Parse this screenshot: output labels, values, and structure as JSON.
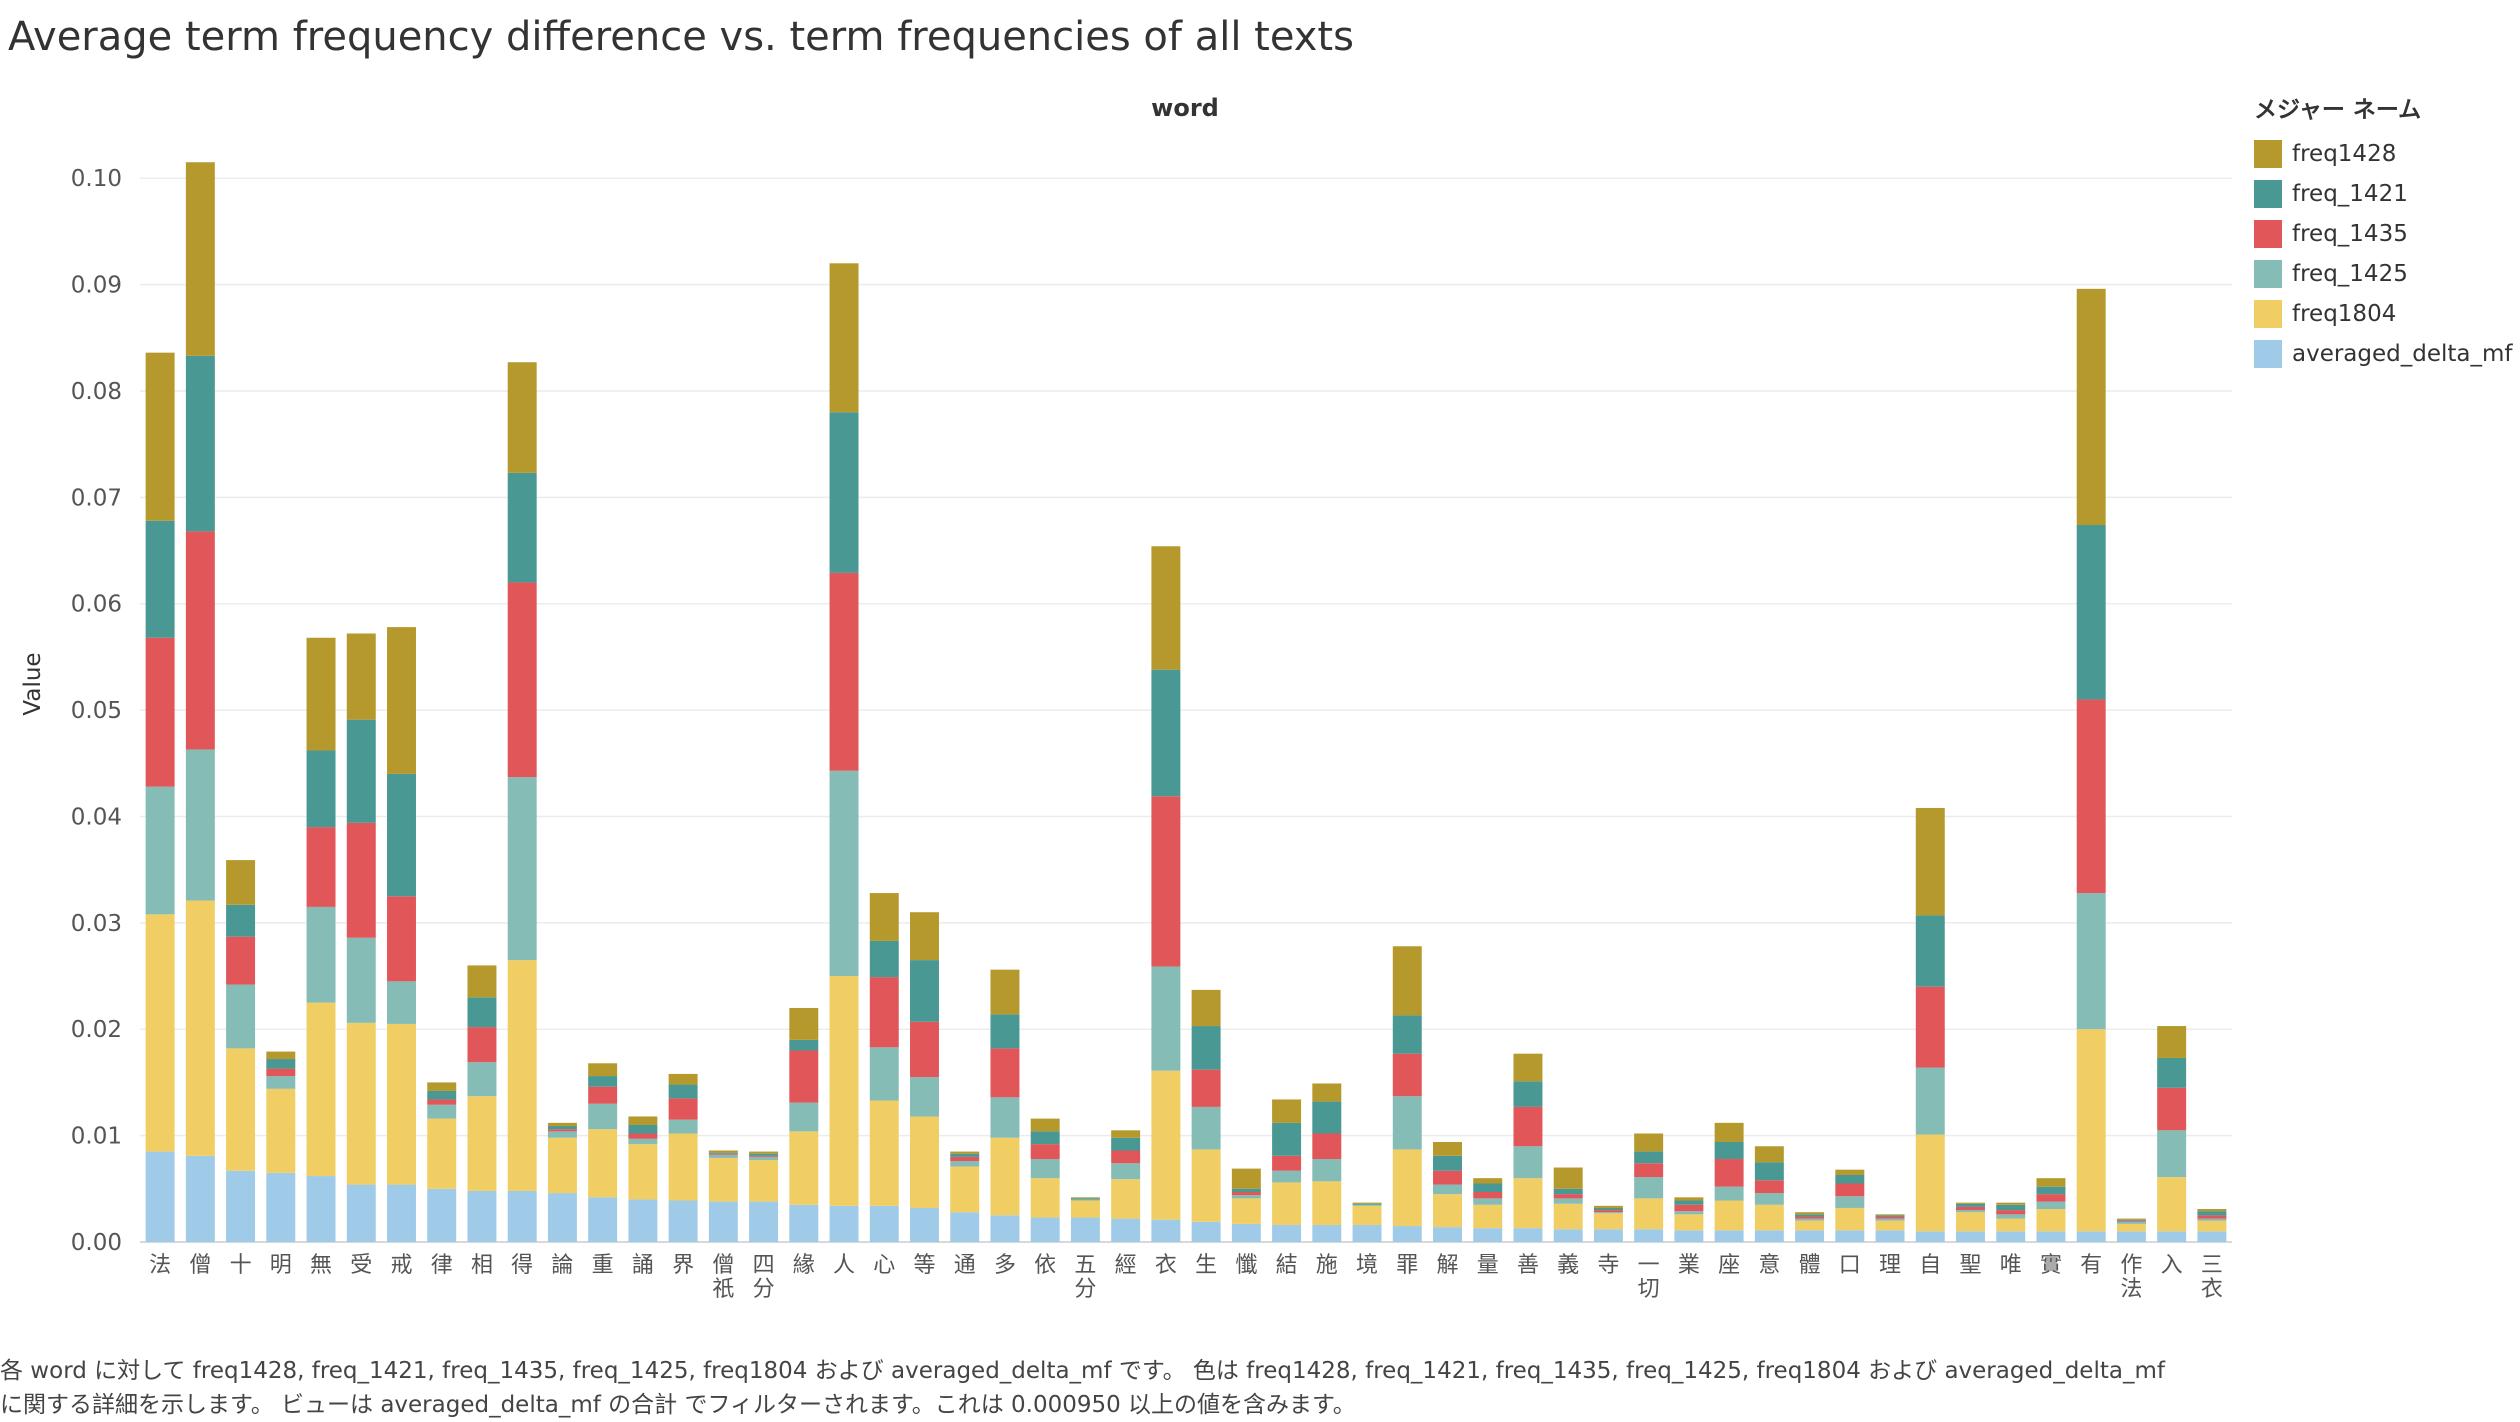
{
  "title": "Average term frequency difference vs. term frequencies of all texts",
  "legend_title": "メジャー ネーム",
  "caption_line1": "各 word に対して freq1428, freq_1421, freq_1435, freq_1425, freq1804 および averaged_delta_mf です。 色は freq1428, freq_1421, freq_1435, freq_1425, freq1804 および averaged_delta_mf",
  "caption_line2": "に関する詳細を示します。 ビューは averaged_delta_mf の合計 でフィルターされます。これは 0.000950 以上の値を含みます。",
  "chart_data": {
    "type": "bar",
    "stacked": true,
    "xlabel": "word",
    "ylabel": "Value",
    "ylim": [
      0,
      0.105
    ],
    "yticks": [
      "0.00",
      "0.01",
      "0.02",
      "0.03",
      "0.04",
      "0.05",
      "0.06",
      "0.07",
      "0.08",
      "0.09",
      "0.10"
    ],
    "grid": true,
    "legend_position": "right",
    "categories": [
      "法",
      "僧",
      "十",
      "明",
      "無",
      "受",
      "戒",
      "律",
      "相",
      "得",
      "論",
      "重",
      "誦",
      "界",
      "僧祇",
      "四分",
      "緣",
      "人",
      "心",
      "等",
      "通",
      "多",
      "依",
      "五分",
      "經",
      "衣",
      "生",
      "懺",
      "結",
      "施",
      "境",
      "罪",
      "解",
      "量",
      "善",
      "義",
      "寺",
      "一切",
      "業",
      "座",
      "意",
      "體",
      "口",
      "理",
      "自",
      "聖",
      "唯",
      "實",
      "有",
      "作法",
      "入",
      "三衣"
    ],
    "series": [
      {
        "name": "averaged_delta_mf",
        "color": "#a0cbe8",
        "values": [
          0.0085,
          0.0081,
          0.0067,
          0.0065,
          0.0062,
          0.0054,
          0.0054,
          0.005,
          0.0048,
          0.0048,
          0.0046,
          0.0042,
          0.004,
          0.0039,
          0.0038,
          0.0038,
          0.0035,
          0.0034,
          0.0034,
          0.0032,
          0.0028,
          0.0025,
          0.0023,
          0.0023,
          0.0022,
          0.0021,
          0.0019,
          0.0017,
          0.0016,
          0.0016,
          0.0016,
          0.0015,
          0.0014,
          0.0013,
          0.0013,
          0.0012,
          0.0012,
          0.0012,
          0.0011,
          0.0011,
          0.0011,
          0.0011,
          0.0011,
          0.0011,
          0.001,
          0.001,
          0.001,
          0.001,
          0.001,
          0.001,
          0.001,
          0.001
        ]
      },
      {
        "name": "freq1804",
        "color": "#f1ce63",
        "values": [
          0.0223,
          0.024,
          0.0115,
          0.0079,
          0.0163,
          0.0152,
          0.0151,
          0.0066,
          0.0089,
          0.0217,
          0.0052,
          0.0064,
          0.0052,
          0.0063,
          0.0041,
          0.0039,
          0.0069,
          0.0216,
          0.0099,
          0.0086,
          0.0043,
          0.0073,
          0.0037,
          0.0016,
          0.0037,
          0.014,
          0.0068,
          0.0024,
          0.004,
          0.0041,
          0.0018,
          0.0072,
          0.0031,
          0.0022,
          0.0047,
          0.0024,
          0.0015,
          0.0029,
          0.0015,
          0.0028,
          0.0024,
          0.0009,
          0.0021,
          0.0009,
          0.0091,
          0.0018,
          0.0012,
          0.0021,
          0.019,
          0.0007,
          0.0051,
          0.001
        ]
      },
      {
        "name": "freq_1425",
        "color": "#86bcb6",
        "values": [
          0.012,
          0.0142,
          0.006,
          0.0012,
          0.009,
          0.008,
          0.004,
          0.0013,
          0.0032,
          0.0172,
          0.0006,
          0.0024,
          0.0005,
          0.0013,
          0.0003,
          0.0003,
          0.0027,
          0.0193,
          0.005,
          0.0037,
          0.0005,
          0.0038,
          0.0018,
          0.0001,
          0.0015,
          0.0098,
          0.004,
          0.0003,
          0.0011,
          0.0021,
          0.0001,
          0.005,
          0.0009,
          0.0006,
          0.003,
          0.0005,
          0.0001,
          0.002,
          0.0003,
          0.0013,
          0.0011,
          0.0002,
          0.0011,
          0.0002,
          0.0063,
          0.0002,
          0.0004,
          0.0007,
          0.0128,
          0.0002,
          0.0044,
          0.0002
        ]
      },
      {
        "name": "freq_1435",
        "color": "#e15759",
        "values": [
          0.014,
          0.0205,
          0.0045,
          0.0007,
          0.0075,
          0.0108,
          0.008,
          0.0005,
          0.0033,
          0.0183,
          0.0002,
          0.0016,
          0.0005,
          0.002,
          0.0001,
          0.0001,
          0.0049,
          0.0186,
          0.0066,
          0.0052,
          0.0004,
          0.0046,
          0.0014,
          0.0,
          0.0012,
          0.016,
          0.0035,
          0.0003,
          0.0014,
          0.0024,
          0.0,
          0.004,
          0.0013,
          0.0006,
          0.0037,
          0.0004,
          0.0002,
          0.0013,
          0.0006,
          0.0026,
          0.0012,
          0.0002,
          0.0012,
          0.0002,
          0.0076,
          0.0003,
          0.0004,
          0.0007,
          0.0182,
          0.0001,
          0.004,
          0.0003
        ]
      },
      {
        "name": "freq_1421",
        "color": "#499894",
        "values": [
          0.011,
          0.0165,
          0.003,
          0.0009,
          0.0072,
          0.0097,
          0.0115,
          0.0008,
          0.0028,
          0.0103,
          0.0003,
          0.001,
          0.0008,
          0.0013,
          0.0001,
          0.0002,
          0.001,
          0.0151,
          0.0034,
          0.0058,
          0.0003,
          0.0032,
          0.0012,
          0.0001,
          0.0012,
          0.0119,
          0.0041,
          0.0003,
          0.0031,
          0.003,
          0.0001,
          0.0036,
          0.0014,
          0.0008,
          0.0024,
          0.0005,
          0.0002,
          0.0011,
          0.0004,
          0.0016,
          0.0017,
          0.0002,
          0.0008,
          0.0001,
          0.0067,
          0.0003,
          0.0005,
          0.0007,
          0.0164,
          0.0001,
          0.0028,
          0.0004
        ]
      },
      {
        "name": "freq1428",
        "color": "#b6992d",
        "values": [
          0.0158,
          0.0182,
          0.0042,
          0.0007,
          0.0106,
          0.0081,
          0.0138,
          0.0008,
          0.003,
          0.0104,
          0.0003,
          0.0012,
          0.0008,
          0.001,
          0.0002,
          0.0002,
          0.003,
          0.014,
          0.0045,
          0.0045,
          0.0002,
          0.0042,
          0.0012,
          0.0001,
          0.0007,
          0.0116,
          0.0034,
          0.0019,
          0.0022,
          0.0017,
          0.0001,
          0.0065,
          0.0013,
          0.0005,
          0.0026,
          0.002,
          0.0002,
          0.0017,
          0.0003,
          0.0018,
          0.0015,
          0.0002,
          0.0005,
          0.0001,
          0.0101,
          0.0001,
          0.0002,
          0.0008,
          0.0222,
          0.0001,
          0.003,
          0.0002
        ]
      }
    ]
  }
}
